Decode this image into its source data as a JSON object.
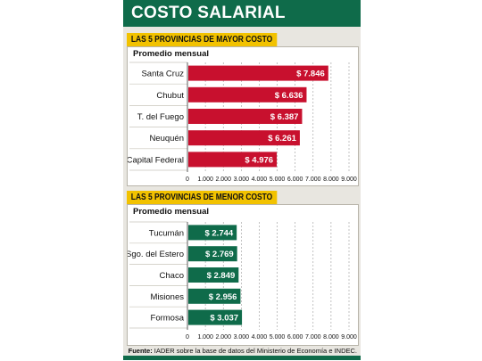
{
  "title": "COSTO SALARIAL",
  "source": {
    "label": "Fuente:",
    "text": "IADER sobre la base de datos del Ministerio de Economía e INDEC."
  },
  "colors": {
    "header_green": "#0f6b4a",
    "label_yellow": "#f2c200",
    "bar_red": "#c8102e",
    "bar_green": "#0f6b4a"
  },
  "chart_data": [
    {
      "type": "bar",
      "orientation": "horizontal",
      "title": "LAS 5 PROVINCIAS DE MAYOR COSTO",
      "subtitle": "Promedio mensual",
      "categories": [
        "Santa Cruz",
        "Chubut",
        "T. del Fuego",
        "Neuquén",
        "Capital Federal"
      ],
      "values": [
        7846,
        6636,
        6387,
        6261,
        4976
      ],
      "data_labels": [
        "$ 7.846",
        "$ 6.636",
        "$ 6.387",
        "$ 6.261",
        "$ 4.976"
      ],
      "xlim": [
        0,
        9000
      ],
      "xticks": [
        0,
        1000,
        2000,
        3000,
        4000,
        5000,
        6000,
        7000,
        8000,
        9000
      ],
      "xtick_labels": [
        "0",
        "1.000",
        "2.000",
        "3.000",
        "4.000",
        "5.000",
        "6.000",
        "7.000",
        "8.000",
        "9.000"
      ],
      "grid": true,
      "bar_color": "#c8102e"
    },
    {
      "type": "bar",
      "orientation": "horizontal",
      "title": "LAS 5 PROVINCIAS DE MENOR COSTO",
      "subtitle": "Promedio mensual",
      "categories": [
        "Tucumán",
        "Sgo. del Estero",
        "Chaco",
        "Misiones",
        "Formosa"
      ],
      "values": [
        2744,
        2769,
        2849,
        2956,
        3037
      ],
      "data_labels": [
        "$ 2.744",
        "$ 2.769",
        "$ 2.849",
        "$ 2.956",
        "$ 3.037"
      ],
      "xlim": [
        0,
        9000
      ],
      "xticks": [
        0,
        1000,
        2000,
        3000,
        4000,
        5000,
        6000,
        7000,
        8000,
        9000
      ],
      "xtick_labels": [
        "0",
        "1.000",
        "2.000",
        "3.000",
        "4.000",
        "5.000",
        "6.000",
        "7.000",
        "8.000",
        "9.000"
      ],
      "grid": true,
      "bar_color": "#0f6b4a"
    }
  ]
}
